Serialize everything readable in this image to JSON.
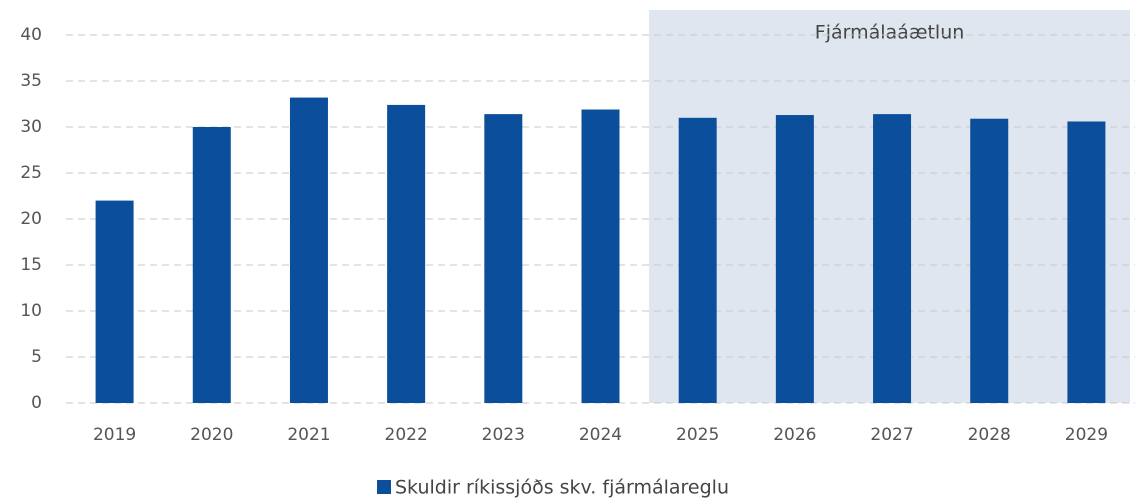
{
  "chart_data": {
    "type": "bar",
    "categories": [
      "2019",
      "2020",
      "2021",
      "2022",
      "2023",
      "2024",
      "2025",
      "2026",
      "2027",
      "2028",
      "2029"
    ],
    "series": [
      {
        "name": "Skuldir ríkissjóðs skv. fjármálareglu",
        "color": "#0b4f9c",
        "values": [
          22,
          30,
          33.2,
          32.4,
          31.4,
          31.9,
          31,
          31.3,
          31.4,
          30.9,
          30.6
        ]
      }
    ],
    "ylim": [
      0,
      40
    ],
    "yticks": [
      0,
      5,
      10,
      15,
      20,
      25,
      30,
      35,
      40
    ],
    "grid": true,
    "highlight": {
      "label": "Fjármálaáætlun",
      "start": "2025",
      "end": "2029",
      "color": "#dfe6ef"
    },
    "legend": "bottom"
  }
}
